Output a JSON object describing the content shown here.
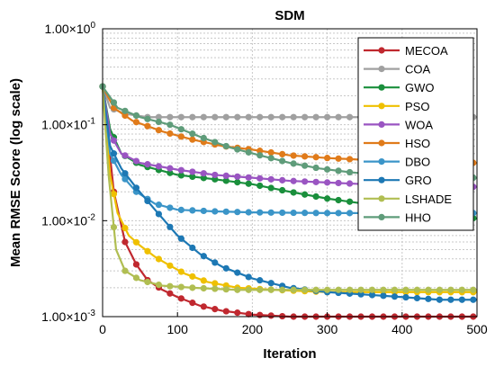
{
  "chart_data": {
    "type": "line",
    "title": "SDM",
    "xlabel": "Iteration",
    "ylabel": "Mean RMSE Score (log scale)",
    "xlim": [
      0,
      500
    ],
    "ylim": [
      0.001,
      1
    ],
    "yscale": "log",
    "grid": true,
    "legend_position": "top-right",
    "x_ticks": [
      0,
      100,
      200,
      300,
      400,
      500
    ],
    "x_tick_labels": [
      "0",
      "100",
      "200",
      "300",
      "400",
      "500"
    ],
    "y_ticks": [
      0.001,
      0.01,
      0.1,
      1
    ],
    "y_tick_labels": [
      {
        "base": "1.00×10",
        "exp": "-3"
      },
      {
        "base": "1.00×10",
        "exp": "-2"
      },
      {
        "base": "1.00×10",
        "exp": "-1"
      },
      {
        "base": "1.00×10",
        "exp": "0"
      }
    ],
    "series": [
      {
        "name": "MECOA",
        "color": "#c0282f",
        "points": [
          [
            0,
            0.25
          ],
          [
            15,
            0.02
          ],
          [
            30,
            0.006
          ],
          [
            45,
            0.0035
          ],
          [
            60,
            0.0024
          ],
          [
            80,
            0.0019
          ],
          [
            100,
            0.0016
          ],
          [
            130,
            0.0013
          ],
          [
            160,
            0.00115
          ],
          [
            200,
            0.00105
          ],
          [
            250,
            0.001
          ],
          [
            300,
            0.001
          ],
          [
            400,
            0.001
          ],
          [
            500,
            0.001
          ]
        ]
      },
      {
        "name": "COA",
        "color": "#a0a0a0",
        "points": [
          [
            0,
            0.25
          ],
          [
            10,
            0.15
          ],
          [
            30,
            0.13
          ],
          [
            60,
            0.12
          ],
          [
            100,
            0.12
          ],
          [
            200,
            0.12
          ],
          [
            300,
            0.12
          ],
          [
            400,
            0.12
          ],
          [
            500,
            0.12
          ]
        ]
      },
      {
        "name": "GWO",
        "color": "#1a8f3c",
        "points": [
          [
            0,
            0.25
          ],
          [
            10,
            0.09
          ],
          [
            25,
            0.05
          ],
          [
            50,
            0.038
          ],
          [
            100,
            0.03
          ],
          [
            150,
            0.027
          ],
          [
            200,
            0.024
          ],
          [
            250,
            0.02
          ],
          [
            300,
            0.017
          ],
          [
            350,
            0.015
          ],
          [
            400,
            0.013
          ],
          [
            450,
            0.012
          ],
          [
            500,
            0.0105
          ]
        ]
      },
      {
        "name": "PSO",
        "color": "#efc000",
        "points": [
          [
            0,
            0.25
          ],
          [
            10,
            0.03
          ],
          [
            20,
            0.012
          ],
          [
            35,
            0.007
          ],
          [
            50,
            0.0055
          ],
          [
            70,
            0.0042
          ],
          [
            90,
            0.0034
          ],
          [
            110,
            0.0028
          ],
          [
            140,
            0.0023
          ],
          [
            180,
            0.002
          ],
          [
            230,
            0.0019
          ],
          [
            300,
            0.0018
          ],
          [
            400,
            0.0018
          ],
          [
            500,
            0.0018
          ]
        ]
      },
      {
        "name": "WOA",
        "color": "#9a55c2",
        "points": [
          [
            0,
            0.25
          ],
          [
            10,
            0.08
          ],
          [
            25,
            0.05
          ],
          [
            50,
            0.04
          ],
          [
            100,
            0.034
          ],
          [
            150,
            0.03
          ],
          [
            200,
            0.028
          ],
          [
            250,
            0.026
          ],
          [
            300,
            0.025
          ],
          [
            350,
            0.024
          ],
          [
            400,
            0.0235
          ],
          [
            450,
            0.023
          ],
          [
            500,
            0.0225
          ]
        ]
      },
      {
        "name": "HSO",
        "color": "#e07b1a",
        "points": [
          [
            0,
            0.25
          ],
          [
            15,
            0.15
          ],
          [
            40,
            0.11
          ],
          [
            80,
            0.085
          ],
          [
            120,
            0.07
          ],
          [
            160,
            0.06
          ],
          [
            200,
            0.055
          ],
          [
            250,
            0.048
          ],
          [
            300,
            0.045
          ],
          [
            350,
            0.043
          ],
          [
            400,
            0.042
          ],
          [
            450,
            0.041
          ],
          [
            500,
            0.04
          ]
        ]
      },
      {
        "name": "DBO",
        "color": "#3b95c8",
        "points": [
          [
            0,
            0.25
          ],
          [
            10,
            0.05
          ],
          [
            25,
            0.03
          ],
          [
            45,
            0.02
          ],
          [
            70,
            0.015
          ],
          [
            100,
            0.013
          ],
          [
            150,
            0.0125
          ],
          [
            200,
            0.0122
          ],
          [
            300,
            0.012
          ],
          [
            400,
            0.012
          ],
          [
            500,
            0.012
          ]
        ]
      },
      {
        "name": "GRO",
        "color": "#1d78b4",
        "points": [
          [
            0,
            0.25
          ],
          [
            10,
            0.06
          ],
          [
            25,
            0.035
          ],
          [
            45,
            0.022
          ],
          [
            70,
            0.013
          ],
          [
            100,
            0.007
          ],
          [
            130,
            0.0045
          ],
          [
            160,
            0.0033
          ],
          [
            200,
            0.0025
          ],
          [
            250,
            0.002
          ],
          [
            300,
            0.0018
          ],
          [
            350,
            0.0017
          ],
          [
            400,
            0.0016
          ],
          [
            450,
            0.0015
          ],
          [
            500,
            0.0015
          ]
        ]
      },
      {
        "name": "LSHADE",
        "color": "#b0be52",
        "points": [
          [
            0,
            0.25
          ],
          [
            8,
            0.03
          ],
          [
            18,
            0.005
          ],
          [
            30,
            0.003
          ],
          [
            50,
            0.0024
          ],
          [
            80,
            0.0021
          ],
          [
            120,
            0.002
          ],
          [
            180,
            0.0019
          ],
          [
            250,
            0.0019
          ],
          [
            350,
            0.0019
          ],
          [
            500,
            0.0019
          ]
        ]
      },
      {
        "name": "HHO",
        "color": "#5f9c7a",
        "points": [
          [
            0,
            0.25
          ],
          [
            20,
            0.15
          ],
          [
            50,
            0.12
          ],
          [
            90,
            0.1
          ],
          [
            130,
            0.075
          ],
          [
            170,
            0.058
          ],
          [
            210,
            0.048
          ],
          [
            250,
            0.04
          ],
          [
            290,
            0.035
          ],
          [
            330,
            0.032
          ],
          [
            370,
            0.03
          ],
          [
            410,
            0.029
          ],
          [
            450,
            0.028
          ],
          [
            500,
            0.028
          ]
        ]
      }
    ]
  }
}
